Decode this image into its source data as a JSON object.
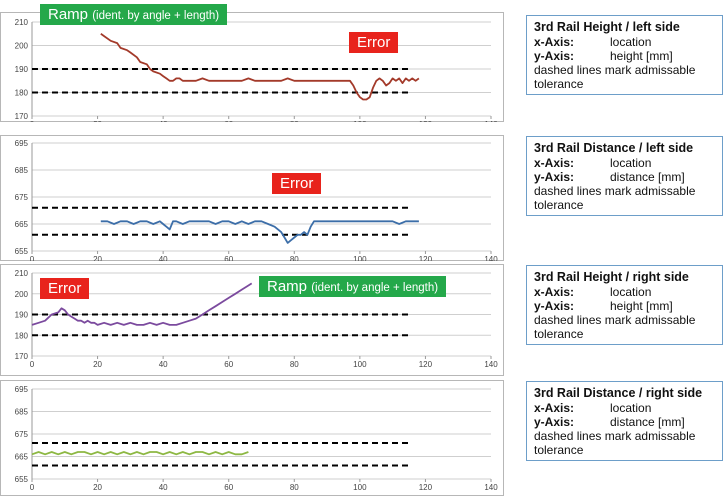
{
  "charts": [
    {
      "chart_data": {
        "type": "line",
        "x_ticks": [
          0,
          20,
          40,
          60,
          80,
          100,
          120,
          140
        ],
        "y_ticks": [
          170,
          180,
          190,
          200,
          210
        ],
        "xlim": [
          0,
          140
        ],
        "ylim": [
          170,
          210
        ],
        "tolerance": [
          190,
          180
        ],
        "series": [
          {
            "color": "#a33a2a",
            "x": [
              21,
              22,
              24,
              26,
              27,
              29,
              30,
              32,
              33,
              35,
              36,
              37,
              39,
              40,
              41,
              42,
              43,
              44,
              45,
              46,
              48,
              50,
              52,
              54,
              56,
              58,
              60,
              62,
              64,
              66,
              68,
              70,
              72,
              74,
              76,
              78,
              80,
              82,
              84,
              86,
              88,
              90,
              92,
              94,
              96,
              97,
              98,
              99,
              100,
              101,
              102,
              103,
              104,
              105,
              106,
              107,
              108,
              109,
              110,
              111,
              112,
              113,
              114,
              115,
              116,
              117,
              118
            ],
            "y": [
              205,
              204,
              202,
              201,
              199,
              198,
              197,
              195,
              193,
              192,
              190,
              189,
              188,
              187,
              186,
              185,
              185,
              186,
              186,
              185,
              185,
              185,
              186,
              185,
              185,
              185,
              185,
              185,
              185,
              186,
              185,
              185,
              185,
              185,
              185,
              186,
              185,
              185,
              185,
              185,
              185,
              185,
              185,
              185,
              185,
              185,
              183,
              180,
              178,
              177,
              177,
              178,
              182,
              185,
              186,
              185,
              183,
              184,
              186,
              185,
              186,
              184,
              186,
              185,
              186,
              185,
              186
            ]
          }
        ]
      },
      "info": {
        "title": "3rd Rail Height / left side",
        "x_label": "x-Axis:",
        "x_value": "location",
        "y_label": "y-Axis:",
        "y_value": "height [mm]",
        "note": "dashed lines mark admissable tolerance"
      },
      "tags": [
        {
          "kind": "green",
          "main": "Ramp",
          "small": "(ident. by angle + length)"
        },
        {
          "kind": "red",
          "main": "Error",
          "small": ""
        }
      ]
    },
    {
      "chart_data": {
        "type": "line",
        "x_ticks": [
          0,
          20,
          40,
          60,
          80,
          100,
          120,
          140
        ],
        "y_ticks": [
          655,
          665,
          675,
          685,
          695
        ],
        "xlim": [
          0,
          140
        ],
        "ylim": [
          655,
          695
        ],
        "tolerance": [
          671,
          661
        ],
        "series": [
          {
            "color": "#3c6ea8",
            "x": [
              21,
              23,
              25,
              27,
              29,
              31,
              33,
              35,
              37,
              39,
              40,
              41,
              42,
              43,
              44,
              46,
              48,
              50,
              52,
              54,
              56,
              58,
              60,
              62,
              64,
              66,
              68,
              70,
              72,
              74,
              76,
              77,
              78,
              79,
              80,
              81,
              82,
              83,
              84,
              85,
              86,
              88,
              90,
              94,
              98,
              102,
              106,
              110,
              112,
              114,
              118
            ],
            "y": [
              666,
              666,
              665,
              666,
              666,
              665,
              666,
              666,
              665,
              666,
              665,
              664,
              663,
              666,
              666,
              665,
              666,
              666,
              666,
              666,
              665,
              666,
              666,
              665,
              666,
              665,
              666,
              666,
              665,
              664,
              662,
              660,
              658,
              659,
              660,
              661,
              661,
              662,
              661,
              664,
              666,
              666,
              666,
              666,
              666,
              666,
              666,
              666,
              665,
              666,
              666
            ]
          }
        ]
      },
      "info": {
        "title": "3rd Rail Distance / left side",
        "x_label": "x-Axis:",
        "x_value": "location",
        "y_label": "y-Axis:",
        "y_value": "distance [mm]",
        "note": "dashed lines mark admissable tolerance"
      },
      "tags": [
        {
          "kind": "red",
          "main": "Error",
          "small": ""
        }
      ]
    },
    {
      "chart_data": {
        "type": "line",
        "x_ticks": [
          0,
          20,
          40,
          60,
          80,
          100,
          120,
          140
        ],
        "y_ticks": [
          170,
          180,
          190,
          200,
          210
        ],
        "xlim": [
          0,
          140
        ],
        "ylim": [
          170,
          210
        ],
        "tolerance": [
          190,
          180
        ],
        "series": [
          {
            "color": "#7b4a9e",
            "x": [
              0,
              2,
              4,
              6,
              8,
              9,
              10,
              11,
              12,
              13,
              14,
              15,
              16,
              17,
              18,
              19,
              20,
              22,
              24,
              26,
              28,
              30,
              32,
              34,
              36,
              38,
              40,
              42,
              44,
              46,
              48,
              50,
              52,
              54,
              56,
              58,
              60,
              62,
              64,
              66,
              67
            ],
            "y": [
              185,
              186,
              187,
              190,
              191,
              193,
              192,
              190,
              189,
              188,
              187,
              187,
              186,
              187,
              186,
              186,
              185,
              186,
              185,
              186,
              185,
              186,
              185,
              185,
              186,
              185,
              186,
              185,
              185,
              186,
              187,
              188,
              190,
              192,
              194,
              196,
              198,
              200,
              202,
              204,
              205
            ]
          }
        ]
      },
      "info": {
        "title": "3rd Rail Height / right side",
        "x_label": "x-Axis:",
        "x_value": "location",
        "y_label": "y-Axis:",
        "y_value": "height [mm]",
        "note": "dashed lines mark admissable tolerance"
      },
      "tags": [
        {
          "kind": "red",
          "main": "Error",
          "small": ""
        },
        {
          "kind": "green",
          "main": "Ramp",
          "small": "(ident. by angle + length)"
        }
      ]
    },
    {
      "chart_data": {
        "type": "line",
        "x_ticks": [
          0,
          20,
          40,
          60,
          80,
          100,
          120,
          140
        ],
        "y_ticks": [
          655,
          665,
          675,
          685,
          695
        ],
        "xlim": [
          0,
          140
        ],
        "ylim": [
          655,
          695
        ],
        "tolerance": [
          671,
          661
        ],
        "series": [
          {
            "color": "#8db843",
            "x": [
              0,
              2,
              4,
              6,
              8,
              10,
              12,
              14,
              16,
              18,
              20,
              22,
              24,
              26,
              28,
              30,
              32,
              34,
              36,
              38,
              40,
              42,
              44,
              46,
              48,
              50,
              52,
              54,
              56,
              58,
              60,
              62,
              64,
              66
            ],
            "y": [
              666,
              667,
              666,
              667,
              666,
              667,
              666,
              667,
              667,
              666,
              667,
              666,
              667,
              666,
              667,
              666,
              667,
              666,
              667,
              667,
              666,
              667,
              666,
              667,
              666,
              667,
              667,
              666,
              667,
              666,
              667,
              666,
              666,
              667
            ]
          }
        ]
      },
      "info": {
        "title": "3rd Rail Distance / right side",
        "x_label": "x-Axis:",
        "x_value": "location",
        "y_label": "y-Axis:",
        "y_value": "distance [mm]",
        "note": "dashed lines mark admissable tolerance"
      },
      "tags": []
    }
  ]
}
